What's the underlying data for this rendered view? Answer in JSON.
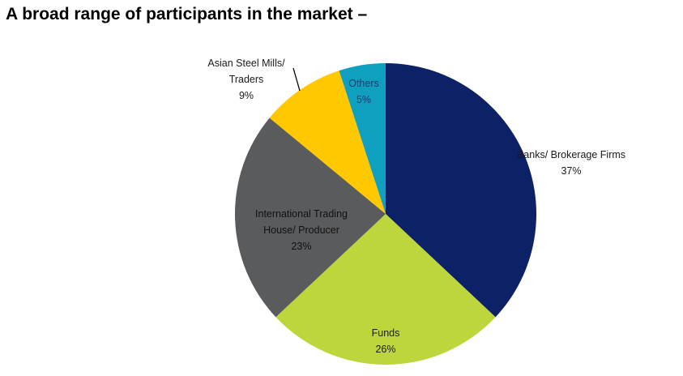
{
  "title": "A broad range of participants in the market –",
  "chart_data": {
    "type": "pie",
    "title": "",
    "slices": [
      {
        "lines": [
          "Banks/ Brokerage Firms"
        ],
        "label": "Banks/ Brokerage Firms",
        "pct_label": "37%",
        "value": 37,
        "color": "#0d2266",
        "text_color": "#1a1a1a"
      },
      {
        "lines": [
          "Funds"
        ],
        "label": "Funds",
        "pct_label": "26%",
        "value": 26,
        "color": "#bdd63b",
        "text_color": "#1a1a1a"
      },
      {
        "lines": [
          "International Trading",
          "House/ Producer"
        ],
        "label": "International Trading House/ Producer",
        "pct_label": "23%",
        "value": 23,
        "color": "#5a5b5d",
        "text_color": "#111111"
      },
      {
        "lines": [
          "Asian Steel Mills/",
          "Traders"
        ],
        "label": "Asian Steel Mills/ Traders",
        "pct_label": "9%",
        "value": 9,
        "color": "#ffc800",
        "text_color": "#1a1a1a"
      },
      {
        "lines": [
          "Others"
        ],
        "label": "Others",
        "pct_label": "5%",
        "value": 5,
        "color": "#0f9fbf",
        "text_color": "#1f3a6e"
      }
    ],
    "start_angle": "12 o'clock",
    "direction": "clockwise"
  }
}
